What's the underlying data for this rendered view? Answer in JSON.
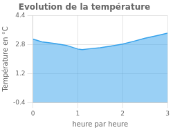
{
  "chart_data": {
    "type": "area",
    "title": "Evolution de la température",
    "xlabel": "heure par heure",
    "ylabel": "Température en °C",
    "x": [
      0,
      0.2,
      0.5,
      0.75,
      1.0,
      1.1,
      1.25,
      1.5,
      1.75,
      2.0,
      2.25,
      2.5,
      2.75,
      3.0
    ],
    "values": [
      3.1,
      2.95,
      2.85,
      2.75,
      2.55,
      2.52,
      2.56,
      2.62,
      2.72,
      2.82,
      2.98,
      3.15,
      3.28,
      3.42
    ],
    "xlim": [
      0,
      3
    ],
    "xticks": [
      0,
      1,
      2,
      3
    ],
    "ylim": [
      -0.4,
      4.4
    ],
    "yticks": [
      -0.4,
      1.2,
      2.8,
      4.4
    ],
    "grid": true
  }
}
